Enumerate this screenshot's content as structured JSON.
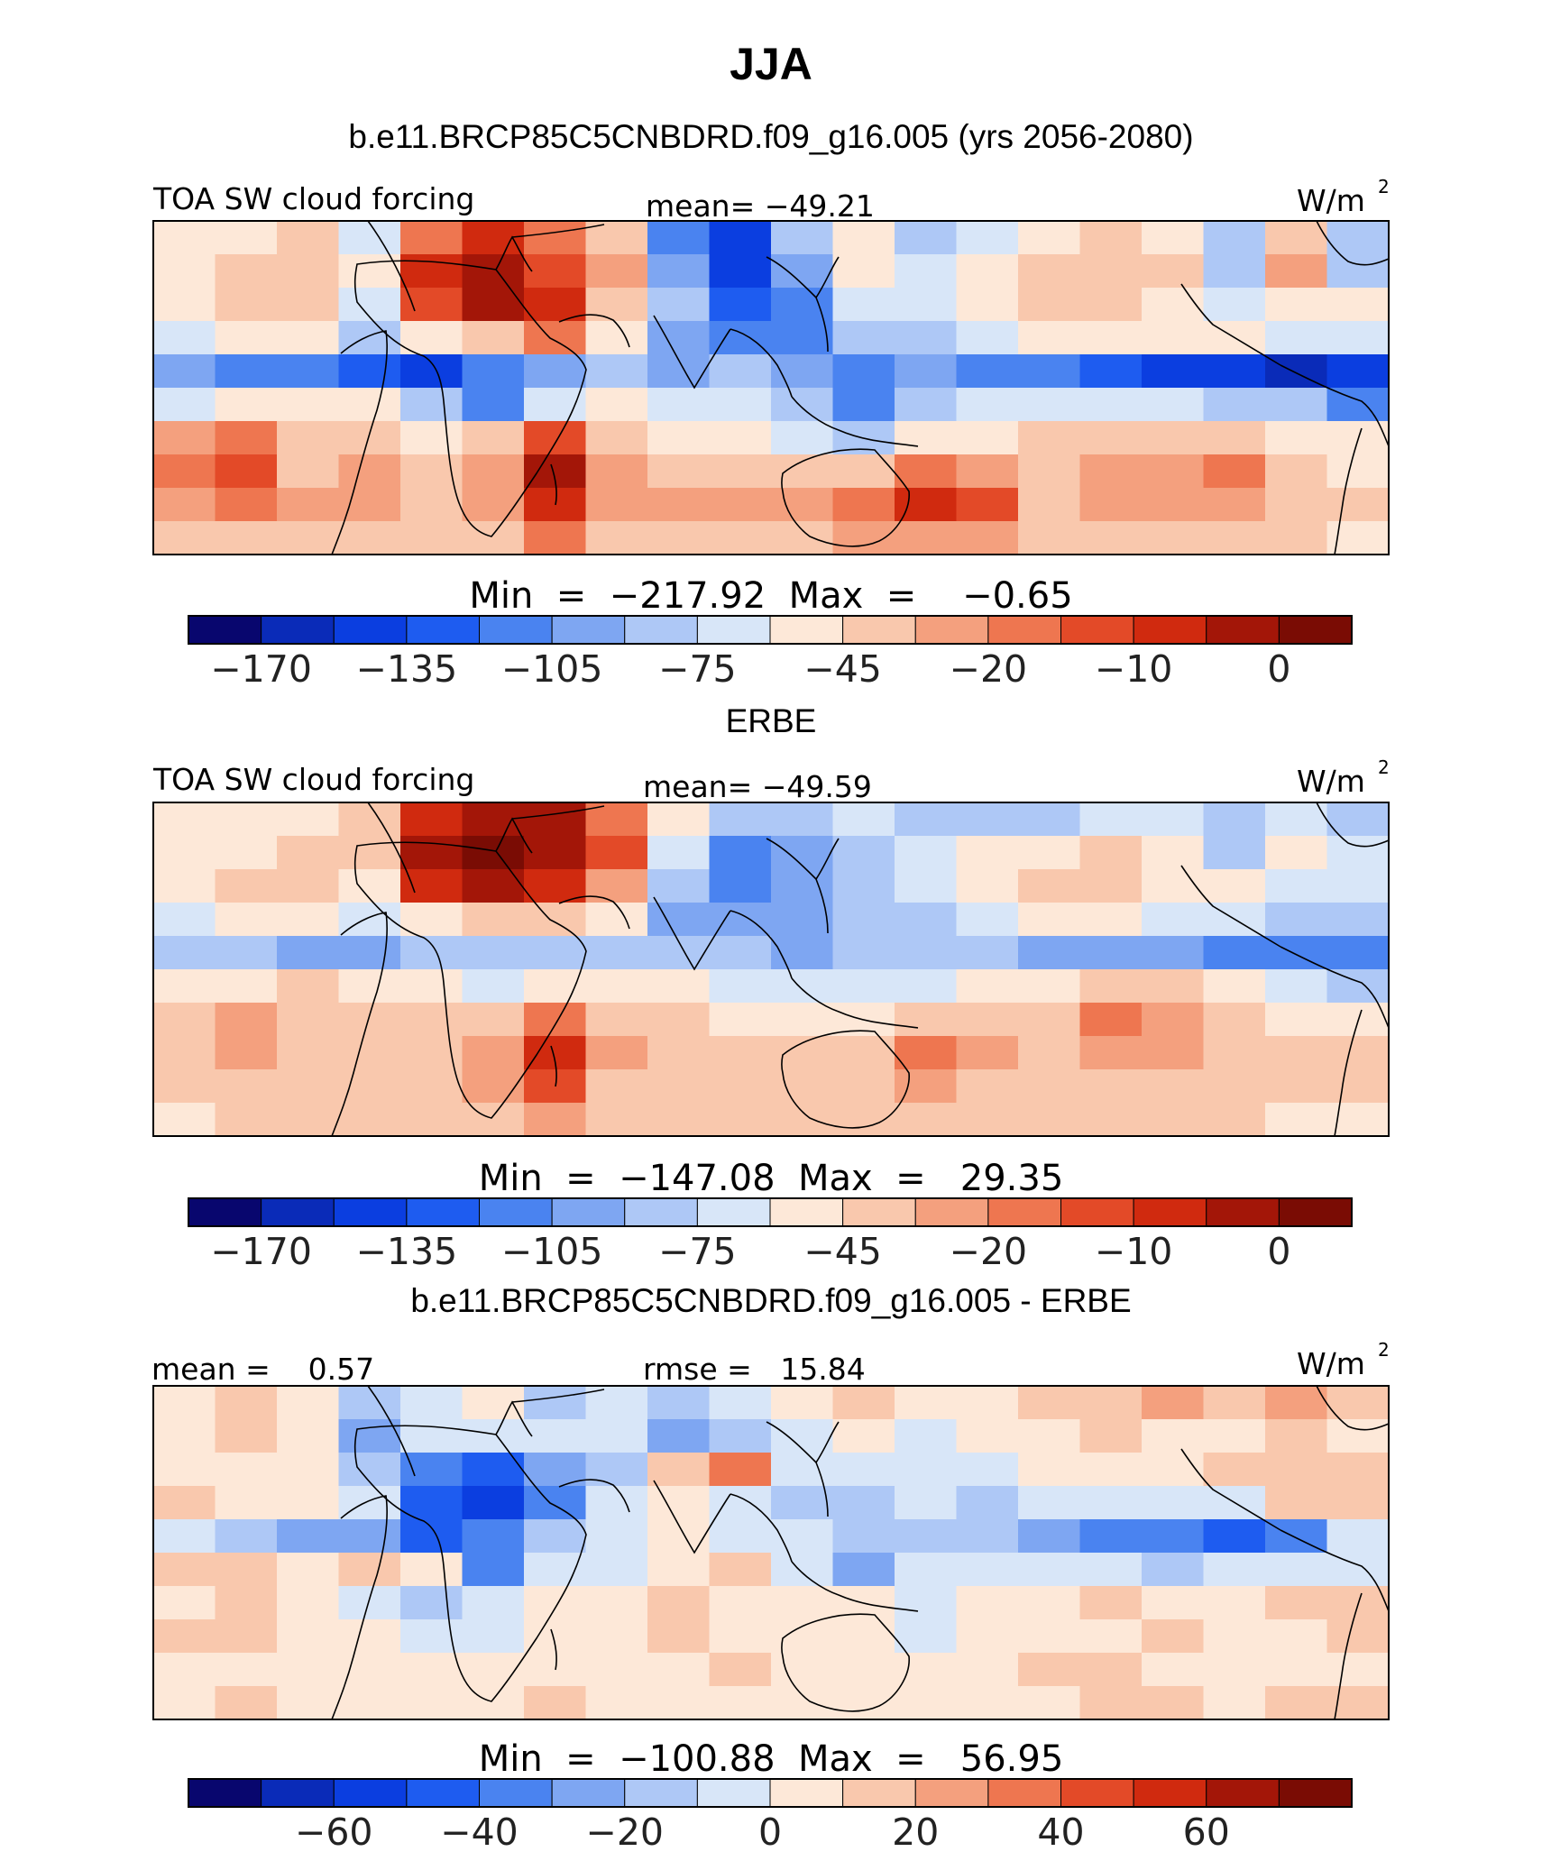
{
  "page_title": "JJA",
  "colors": {
    "cmap": [
      "#08066e",
      "#0a2bb8",
      "#0b3ee0",
      "#1e5cf0",
      "#4a83f0",
      "#7ea6f2",
      "#aec8f6",
      "#d8e6f8",
      "#fde8d8",
      "#f9c8ad",
      "#f4a07e",
      "#ee7650",
      "#e34a28",
      "#d02a0f",
      "#a31608",
      "#7a0c04"
    ]
  },
  "chart_data": [
    {
      "type": "heatmap",
      "panel_title": "b.e11.BRCP85C5CNBDRD.f09_g16.005 (yrs 2056-2080)",
      "variable": "TOA SW cloud forcing",
      "units_text": "W/m",
      "units_sup": "2",
      "mean_text": "mean= −49.21",
      "minmax_text": "Min  =  −217.92  Max  =    −0.65",
      "min": -217.92,
      "max": -0.65,
      "mean": -49.21,
      "colorbar_ticks": [
        "−170",
        "−135",
        "−105",
        "−75",
        "−45",
        "−20",
        "−10",
        "0"
      ],
      "field": [
        [
          -55,
          -50,
          -45,
          -70,
          -20,
          -10,
          -20,
          -40,
          -110,
          -140,
          -80,
          -60,
          -80,
          -65,
          -55,
          -45,
          -50,
          -80,
          -40,
          -90
        ],
        [
          -50,
          -40,
          -45,
          -60,
          -10,
          -5,
          -15,
          -30,
          -100,
          -150,
          -100,
          -60,
          -70,
          -55,
          -40,
          -40,
          -45,
          -90,
          -30,
          -80
        ],
        [
          -60,
          -45,
          -45,
          -75,
          -15,
          -5,
          -10,
          -40,
          -85,
          -130,
          -120,
          -75,
          -70,
          -50,
          -35,
          -40,
          -50,
          -70,
          -50,
          -60
        ],
        [
          -70,
          -55,
          -55,
          -80,
          -50,
          -40,
          -20,
          -60,
          -100,
          -110,
          -115,
          -90,
          -80,
          -65,
          -50,
          -50,
          -60,
          -60,
          -70,
          -70
        ],
        [
          -100,
          -110,
          -120,
          -130,
          -140,
          -120,
          -100,
          -90,
          -95,
          -80,
          -100,
          -110,
          -100,
          -110,
          -120,
          -130,
          -140,
          -150,
          -160,
          -150
        ],
        [
          -70,
          -60,
          -50,
          -60,
          -80,
          -110,
          -70,
          -60,
          -70,
          -75,
          -90,
          -110,
          -80,
          -70,
          -65,
          -70,
          -75,
          -80,
          -90,
          -110
        ],
        [
          -30,
          -20,
          -40,
          -45,
          -55,
          -35,
          -15,
          -40,
          -55,
          -50,
          -65,
          -80,
          -60,
          -50,
          -45,
          -40,
          -35,
          -45,
          -55,
          -60
        ],
        [
          -20,
          -15,
          -35,
          -30,
          -40,
          -25,
          -5,
          -30,
          -40,
          -35,
          -40,
          -45,
          -20,
          -25,
          -40,
          -30,
          -25,
          -20,
          -35,
          -50
        ],
        [
          -25,
          -20,
          -30,
          -25,
          -35,
          -30,
          -10,
          -25,
          -30,
          -30,
          -30,
          -20,
          -10,
          -15,
          -35,
          -30,
          -30,
          -30,
          -40,
          -45
        ],
        [
          -40,
          -35,
          -35,
          -40,
          -40,
          -35,
          -20,
          -35,
          -40,
          -40,
          -35,
          -30,
          -25,
          -30,
          -40,
          -40,
          -40,
          -40,
          -45,
          -50
        ]
      ]
    },
    {
      "type": "heatmap",
      "panel_title": "ERBE",
      "variable": "TOA SW cloud forcing",
      "units_text": "W/m",
      "units_sup": "2",
      "mean_text": "mean= −49.59",
      "minmax_text": "Min  =  −147.08  Max  =   29.35",
      "min": -147.08,
      "max": 29.35,
      "mean": -49.59,
      "colorbar_ticks": [
        "−170",
        "−135",
        "−105",
        "−75",
        "−45",
        "−20",
        "−10",
        "0"
      ],
      "field": [
        [
          -60,
          -55,
          -50,
          -45,
          -10,
          -5,
          -5,
          -20,
          -60,
          -90,
          -80,
          -70,
          -80,
          -85,
          -80,
          -70,
          -70,
          -85,
          -70,
          -80
        ],
        [
          -55,
          -50,
          -45,
          -40,
          -5,
          0,
          -5,
          -15,
          -75,
          -110,
          -100,
          -80,
          -70,
          -60,
          -55,
          -45,
          -50,
          -80,
          -60,
          -75
        ],
        [
          -55,
          -45,
          -45,
          -50,
          -10,
          -5,
          -10,
          -30,
          -90,
          -120,
          -100,
          -80,
          -70,
          -55,
          -45,
          -40,
          -50,
          -60,
          -65,
          -75
        ],
        [
          -65,
          -60,
          -60,
          -70,
          -50,
          -40,
          -35,
          -60,
          -95,
          -105,
          -100,
          -85,
          -80,
          -70,
          -60,
          -60,
          -65,
          -70,
          -80,
          -90
        ],
        [
          -80,
          -85,
          -95,
          -100,
          -90,
          -85,
          -80,
          -80,
          -85,
          -80,
          -95,
          -90,
          -85,
          -90,
          -95,
          -100,
          -105,
          -110,
          -115,
          -120
        ],
        [
          -55,
          -50,
          -45,
          -55,
          -60,
          -70,
          -60,
          -55,
          -60,
          -65,
          -70,
          -75,
          -70,
          -60,
          -55,
          -45,
          -40,
          -60,
          -75,
          -90
        ],
        [
          -35,
          -30,
          -40,
          -45,
          -45,
          -35,
          -20,
          -35,
          -45,
          -50,
          -55,
          -60,
          -40,
          -45,
          -35,
          -20,
          -25,
          -35,
          -50,
          -60
        ],
        [
          -35,
          -25,
          -35,
          -40,
          -40,
          -25,
          -10,
          -30,
          -40,
          -40,
          -40,
          -35,
          -20,
          -25,
          -40,
          -30,
          -30,
          -35,
          -40,
          -45
        ],
        [
          -45,
          -35,
          -40,
          -40,
          -40,
          -30,
          -15,
          -35,
          -40,
          -40,
          -40,
          -35,
          -25,
          -35,
          -40,
          -40,
          -40,
          -40,
          -45,
          -45
        ],
        [
          -50,
          -45,
          -45,
          -45,
          -45,
          -40,
          -30,
          -40,
          -45,
          -45,
          -45,
          -40,
          -35,
          -40,
          -45,
          -45,
          -45,
          -45,
          -50,
          -50
        ]
      ]
    },
    {
      "type": "heatmap",
      "panel_title": "b.e11.BRCP85C5CNBDRD.f09_g16.005 - ERBE",
      "variable": "",
      "units_text": "W/m",
      "units_sup": "2",
      "mean_text": "mean =    0.57",
      "rmse_text": "rmse =   15.84",
      "minmax_text": "Min  =  −100.88  Max  =   56.95",
      "min": -100.88,
      "max": 56.95,
      "mean": 0.57,
      "rmse": 15.84,
      "colorbar_ticks": [
        "−60",
        "−40",
        "−20",
        "0",
        "20",
        "40",
        "60"
      ],
      "field": [
        [
          5,
          10,
          5,
          -20,
          -10,
          0,
          -15,
          -10,
          -20,
          -5,
          0,
          10,
          0,
          5,
          10,
          15,
          20,
          15,
          25,
          10
        ],
        [
          5,
          10,
          0,
          -25,
          -10,
          -5,
          -5,
          -10,
          -25,
          -20,
          -10,
          5,
          -5,
          0,
          5,
          10,
          5,
          0,
          10,
          5
        ],
        [
          5,
          0,
          5,
          -20,
          -40,
          -45,
          -30,
          -20,
          10,
          30,
          -10,
          -5,
          -10,
          -5,
          0,
          5,
          5,
          10,
          15,
          10
        ],
        [
          10,
          5,
          5,
          -10,
          -50,
          -55,
          -40,
          -10,
          5,
          -5,
          -15,
          -20,
          -10,
          -15,
          -10,
          -10,
          -5,
          -5,
          10,
          15
        ],
        [
          -5,
          -15,
          -25,
          -30,
          -50,
          -35,
          -20,
          -10,
          0,
          -10,
          -10,
          -20,
          -15,
          -20,
          -30,
          -35,
          -40,
          -45,
          -40,
          -10
        ],
        [
          10,
          15,
          5,
          10,
          0,
          -35,
          -10,
          -5,
          0,
          10,
          -5,
          -30,
          -10,
          -5,
          -10,
          -10,
          -15,
          -10,
          -5,
          -5
        ],
        [
          5,
          15,
          5,
          -5,
          -20,
          -10,
          5,
          5,
          15,
          5,
          5,
          5,
          -10,
          0,
          5,
          10,
          5,
          5,
          10,
          15
        ],
        [
          10,
          10,
          5,
          5,
          -10,
          -5,
          0,
          5,
          10,
          5,
          5,
          5,
          -5,
          0,
          5,
          5,
          10,
          5,
          5,
          10
        ],
        [
          5,
          5,
          5,
          0,
          0,
          5,
          5,
          5,
          5,
          10,
          5,
          5,
          0,
          5,
          10,
          10,
          5,
          5,
          5,
          5
        ],
        [
          5,
          10,
          5,
          0,
          0,
          5,
          10,
          5,
          5,
          5,
          0,
          5,
          5,
          5,
          5,
          10,
          10,
          5,
          10,
          10
        ]
      ]
    }
  ]
}
